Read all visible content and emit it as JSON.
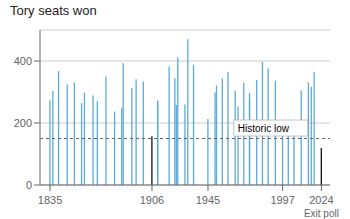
{
  "chart_data": {
    "type": "bar",
    "title": "Tory seats won",
    "x": [
      1835,
      1837,
      1841,
      1847,
      1852,
      1857,
      1859,
      1865,
      1868,
      1874,
      1880,
      1885,
      1886,
      1892,
      1895,
      1900,
      1906,
      1910,
      1910,
      1918,
      1922,
      1923,
      1924,
      1929,
      1931,
      1935,
      1945,
      1950,
      1951,
      1955,
      1959,
      1964,
      1966,
      1970,
      1974,
      1974,
      1979,
      1983,
      1987,
      1992,
      1997,
      2001,
      2005,
      2010,
      2015,
      2017,
      2019,
      2024
    ],
    "values": [
      273,
      303,
      367,
      325,
      330,
      264,
      298,
      289,
      271,
      350,
      237,
      249,
      393,
      313,
      341,
      334,
      157,
      272,
      272,
      382,
      344,
      258,
      412,
      260,
      470,
      387,
      213,
      298,
      321,
      344,
      365,
      304,
      253,
      330,
      297,
      277,
      339,
      397,
      376,
      336,
      165,
      166,
      198,
      306,
      331,
      317,
      365,
      119
    ],
    "colors": [
      "#5aaad8",
      "#5aaad8",
      "#5aaad8",
      "#5aaad8",
      "#5aaad8",
      "#5aaad8",
      "#5aaad8",
      "#5aaad8",
      "#5aaad8",
      "#5aaad8",
      "#5aaad8",
      "#5aaad8",
      "#5aaad8",
      "#5aaad8",
      "#5aaad8",
      "#5aaad8",
      "#111111",
      "#5aaad8",
      "#5aaad8",
      "#5aaad8",
      "#5aaad8",
      "#5aaad8",
      "#5aaad8",
      "#5aaad8",
      "#5aaad8",
      "#5aaad8",
      "#5aaad8",
      "#5aaad8",
      "#5aaad8",
      "#5aaad8",
      "#5aaad8",
      "#5aaad8",
      "#5aaad8",
      "#5aaad8",
      "#5aaad8",
      "#5aaad8",
      "#5aaad8",
      "#5aaad8",
      "#5aaad8",
      "#5aaad8",
      "#5aaad8",
      "#5aaad8",
      "#5aaad8",
      "#5aaad8",
      "#5aaad8",
      "#5aaad8",
      "#5aaad8",
      "#111111"
    ],
    "xlim": [
      1828,
      2030
    ],
    "xticks": [
      1835,
      1906,
      1945,
      1997,
      2024
    ],
    "ylim": [
      0,
      500
    ],
    "yticks": [
      0,
      200,
      400
    ],
    "grid": true,
    "reference_line": 150,
    "annotations": [
      {
        "text": "Historic low",
        "x": 1963,
        "y": 158
      },
      {
        "text": "Exit poll",
        "x": 2024
      }
    ]
  }
}
